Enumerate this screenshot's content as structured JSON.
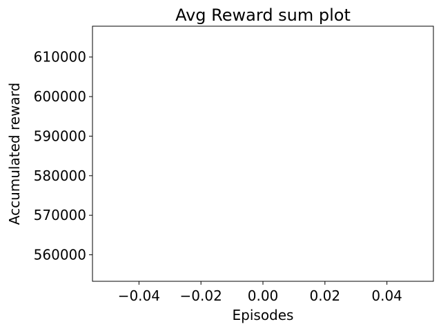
{
  "chart_data": {
    "type": "line",
    "title": "Avg Reward sum plot",
    "xlabel": "Episodes",
    "ylabel": "Accumulated reward",
    "xlim": [
      -0.055,
      0.055
    ],
    "ylim": [
      553300,
      617800
    ],
    "xticks": [
      -0.04,
      -0.02,
      0.0,
      0.02,
      0.04
    ],
    "xtick_labels": [
      "−0.04",
      "−0.02",
      "0.00",
      "0.02",
      "0.04"
    ],
    "yticks": [
      560000,
      570000,
      580000,
      590000,
      600000,
      610000
    ],
    "ytick_labels": [
      "560000",
      "570000",
      "580000",
      "590000",
      "600000",
      "610000"
    ],
    "grid": false,
    "series": [
      {
        "x": [],
        "values": []
      }
    ]
  }
}
